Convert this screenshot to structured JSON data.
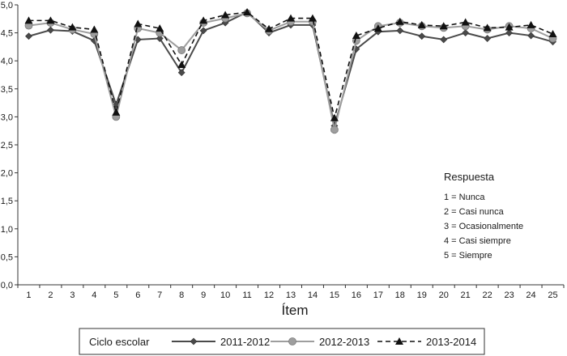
{
  "chart_data": {
    "type": "line",
    "xlabel": "Ítem",
    "ylabel": "",
    "title": "",
    "ylim": [
      0,
      5
    ],
    "yticks": [
      "0,0",
      "0,5",
      "1,0",
      "1,5",
      "2,0",
      "2,5",
      "3,0",
      "3,5",
      "4,0",
      "4,5",
      "5,0"
    ],
    "x": [
      "1",
      "2",
      "3",
      "4",
      "5",
      "6",
      "7",
      "8",
      "9",
      "10",
      "11",
      "12",
      "13",
      "14",
      "15",
      "16",
      "17",
      "18",
      "19",
      "20",
      "21",
      "22",
      "23",
      "24",
      "25"
    ],
    "grid": false,
    "legend_position": "bottom",
    "legend_title": "Ciclo escolar",
    "series": [
      {
        "name": "2011-2012",
        "color": "#4a4a4a",
        "marker": "diamond",
        "dash": "solid",
        "values": [
          4.44,
          4.55,
          4.53,
          4.36,
          3.22,
          4.38,
          4.4,
          3.79,
          4.54,
          4.68,
          4.87,
          4.5,
          4.64,
          4.64,
          2.84,
          4.21,
          4.52,
          4.54,
          4.44,
          4.38,
          4.5,
          4.4,
          4.5,
          4.45,
          4.34
        ]
      },
      {
        "name": "2012-2013",
        "color": "#9e9e9e",
        "marker": "circle",
        "dash": "solid",
        "values": [
          4.63,
          4.68,
          4.56,
          4.48,
          3.0,
          4.58,
          4.5,
          4.19,
          4.68,
          4.76,
          4.85,
          4.54,
          4.7,
          4.7,
          2.77,
          4.36,
          4.62,
          4.68,
          4.62,
          4.59,
          4.62,
          4.56,
          4.62,
          4.58,
          4.4
        ]
      },
      {
        "name": "2013-2014",
        "color": "#111111",
        "marker": "triangle",
        "dash": "dashed",
        "values": [
          4.72,
          4.72,
          4.6,
          4.56,
          3.08,
          4.66,
          4.58,
          3.93,
          4.72,
          4.82,
          4.87,
          4.57,
          4.76,
          4.76,
          2.98,
          4.45,
          4.58,
          4.7,
          4.64,
          4.62,
          4.69,
          4.59,
          4.6,
          4.64,
          4.48
        ]
      }
    ],
    "annotation": {
      "title": "Respuesta",
      "lines": [
        "1 = Nunca",
        "2 = Casi nunca",
        "3 = Ocasionalmente",
        "4 = Casi siempre",
        "5 = Siempre"
      ]
    }
  }
}
